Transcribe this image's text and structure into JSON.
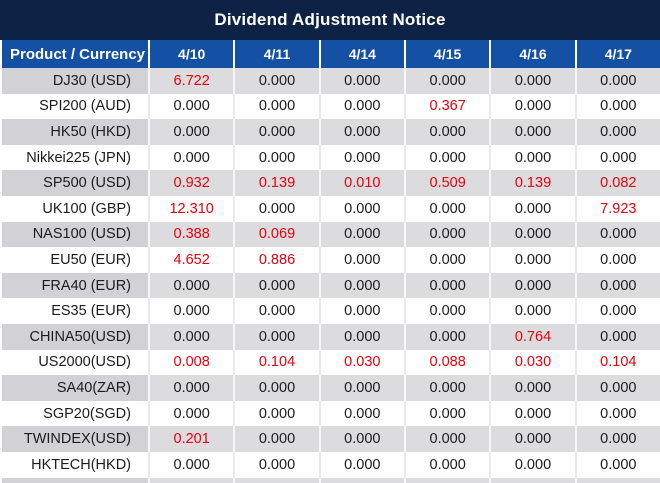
{
  "title": "Dividend Adjustment Notice",
  "colors": {
    "title_bg": "#0d2245",
    "header_bg": "#1451a5",
    "gray_label": "#d1d1d6",
    "gray_value": "#dcdcdf",
    "highlight": "#e8000d",
    "text": "#1c1c1c"
  },
  "table": {
    "header": [
      "Product / Currency",
      "4/10",
      "4/11",
      "4/14",
      "4/15",
      "4/16",
      "4/17"
    ],
    "rows": [
      {
        "label": "DJ30 (USD)",
        "values": [
          "6.722",
          "0.000",
          "0.000",
          "0.000",
          "0.000",
          "0.000"
        ],
        "red": [
          true,
          false,
          false,
          false,
          false,
          false
        ]
      },
      {
        "label": "SPI200 (AUD)",
        "values": [
          "0.000",
          "0.000",
          "0.000",
          "0.367",
          "0.000",
          "0.000"
        ],
        "red": [
          false,
          false,
          false,
          true,
          false,
          false
        ]
      },
      {
        "label": "HK50 (HKD)",
        "values": [
          "0.000",
          "0.000",
          "0.000",
          "0.000",
          "0.000",
          "0.000"
        ],
        "red": [
          false,
          false,
          false,
          false,
          false,
          false
        ]
      },
      {
        "label": "Nikkei225 (JPN)",
        "values": [
          "0.000",
          "0.000",
          "0.000",
          "0.000",
          "0.000",
          "0.000"
        ],
        "red": [
          false,
          false,
          false,
          false,
          false,
          false
        ]
      },
      {
        "label": "SP500 (USD)",
        "values": [
          "0.932",
          "0.139",
          "0.010",
          "0.509",
          "0.139",
          "0.082"
        ],
        "red": [
          true,
          true,
          true,
          true,
          true,
          true
        ]
      },
      {
        "label": "UK100 (GBP)",
        "values": [
          "12.310",
          "0.000",
          "0.000",
          "0.000",
          "0.000",
          "7.923"
        ],
        "red": [
          true,
          false,
          false,
          false,
          false,
          true
        ]
      },
      {
        "label": "NAS100 (USD)",
        "values": [
          "0.388",
          "0.069",
          "0.000",
          "0.000",
          "0.000",
          "0.000"
        ],
        "red": [
          true,
          true,
          false,
          false,
          false,
          false
        ]
      },
      {
        "label": "EU50 (EUR)",
        "values": [
          "4.652",
          "0.886",
          "0.000",
          "0.000",
          "0.000",
          "0.000"
        ],
        "red": [
          true,
          true,
          false,
          false,
          false,
          false
        ]
      },
      {
        "label": "FRA40 (EUR)",
        "values": [
          "0.000",
          "0.000",
          "0.000",
          "0.000",
          "0.000",
          "0.000"
        ],
        "red": [
          false,
          false,
          false,
          false,
          false,
          false
        ]
      },
      {
        "label": "ES35 (EUR)",
        "values": [
          "0.000",
          "0.000",
          "0.000",
          "0.000",
          "0.000",
          "0.000"
        ],
        "red": [
          false,
          false,
          false,
          false,
          false,
          false
        ]
      },
      {
        "label": "CHINA50(USD)",
        "values": [
          "0.000",
          "0.000",
          "0.000",
          "0.000",
          "0.764",
          "0.000"
        ],
        "red": [
          false,
          false,
          false,
          false,
          true,
          false
        ]
      },
      {
        "label": "US2000(USD)",
        "values": [
          "0.008",
          "0.104",
          "0.030",
          "0.088",
          "0.030",
          "0.104"
        ],
        "red": [
          true,
          true,
          true,
          true,
          true,
          true
        ]
      },
      {
        "label": "SA40(ZAR)",
        "values": [
          "0.000",
          "0.000",
          "0.000",
          "0.000",
          "0.000",
          "0.000"
        ],
        "red": [
          false,
          false,
          false,
          false,
          false,
          false
        ]
      },
      {
        "label": "SGP20(SGD)",
        "values": [
          "0.000",
          "0.000",
          "0.000",
          "0.000",
          "0.000",
          "0.000"
        ],
        "red": [
          false,
          false,
          false,
          false,
          false,
          false
        ]
      },
      {
        "label": "TWINDEX(USD)",
        "values": [
          "0.201",
          "0.000",
          "0.000",
          "0.000",
          "0.000",
          "0.000"
        ],
        "red": [
          true,
          false,
          false,
          false,
          false,
          false
        ]
      },
      {
        "label": "HKTECH(HKD)",
        "values": [
          "0.000",
          "0.000",
          "0.000",
          "0.000",
          "0.000",
          "0.000"
        ],
        "red": [
          false,
          false,
          false,
          false,
          false,
          false
        ]
      }
    ]
  }
}
